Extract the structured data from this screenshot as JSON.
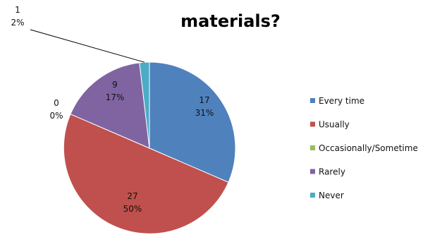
{
  "chart_data": {
    "type": "pie",
    "title_lines": [
      "materials?"
    ],
    "slices": [
      {
        "label": "Every time",
        "value": 17,
        "percent": "31%",
        "color": "#4f81bd"
      },
      {
        "label": "Usually",
        "value": 27,
        "percent": "50%",
        "color": "#c0504d"
      },
      {
        "label": "Occasionally/Sometime",
        "value": 0,
        "percent": "0%",
        "color": "#9bbb59"
      },
      {
        "label": "Rarely",
        "value": 9,
        "percent": "17%",
        "color": "#8064a2"
      },
      {
        "label": "Never",
        "value": 1,
        "percent": "2%",
        "color": "#4bacc6"
      }
    ],
    "legend_position": "right"
  }
}
